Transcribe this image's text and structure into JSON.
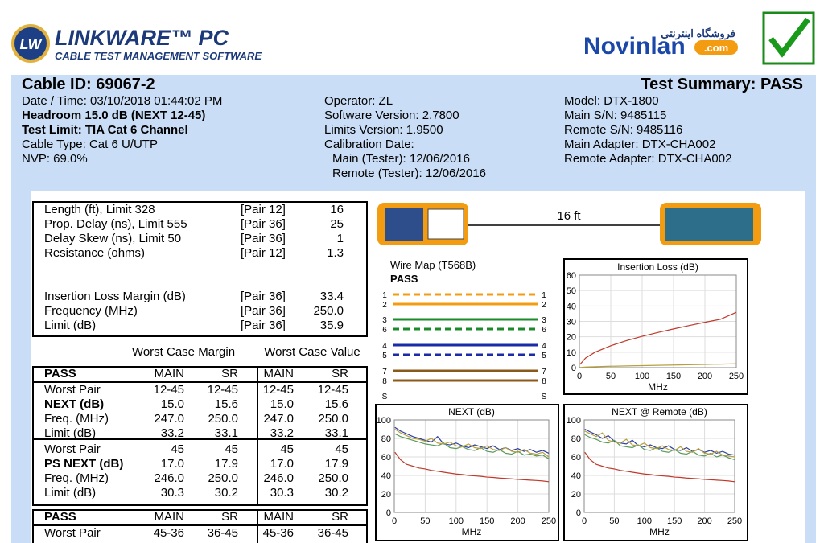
{
  "header": {
    "logo_badge": "LW",
    "product": "LINKWARE™ PC",
    "tagline": "CABLE TEST MANAGEMENT SOFTWARE",
    "brand": "Novinlan",
    "brand_suffix": ".com",
    "brand_persian": "فروشگاه اینترنتی"
  },
  "summary": {
    "cable_id": "Cable ID: 69067-2",
    "result": "Test Summary: PASS",
    "col1": [
      "Date / Time: 03/10/2018  01:44:02 PM",
      "Headroom 15.0 dB (NEXT 12-45)",
      "Test Limit: TIA Cat 6 Channel",
      "Cable Type: Cat 6 U/UTP",
      "NVP: 69.0%"
    ],
    "col2": [
      "Operator: ZL",
      "Software Version: 2.7800",
      "Limits Version: 1.9500",
      "Calibration Date:",
      "Main (Tester): 12/06/2016",
      "Remote (Tester): 12/06/2016"
    ],
    "col3": [
      "Model: DTX-1800",
      "Main S/N: 9485115",
      "Remote S/N: 9485116",
      "Main Adapter: DTX-CHA002",
      "Remote Adapter: DTX-CHA002"
    ]
  },
  "results": [
    [
      [
        "Length (ft), Limit 328",
        "[Pair 12]",
        "16"
      ],
      [
        "Prop. Delay (ns), Limit 555",
        "[Pair 36]",
        "25"
      ],
      [
        "Delay Skew (ns), Limit 50",
        "[Pair 36]",
        "1"
      ],
      [
        "Resistance (ohms)",
        "[Pair 12]",
        "1.3"
      ]
    ],
    [
      [
        "Insertion Loss Margin (dB)",
        "[Pair 36]",
        "33.4"
      ],
      [
        "Frequency (MHz)",
        "[Pair 36]",
        "250.0"
      ],
      [
        "Limit (dB)",
        "[Pair 36]",
        "35.9"
      ]
    ]
  ],
  "worst_case": {
    "headings": [
      "Worst Case Margin",
      "Worst Case Value"
    ],
    "tables": [
      {
        "header": [
          "PASS",
          "MAIN",
          "SR",
          "MAIN",
          "SR"
        ],
        "groups": [
          [
            [
              "Worst Pair",
              "12-45",
              "12-45",
              "12-45",
              "12-45"
            ],
            [
              "NEXT (dB)",
              "15.0",
              "15.6",
              "15.0",
              "15.6"
            ],
            [
              "Freq. (MHz)",
              "247.0",
              "250.0",
              "247.0",
              "250.0"
            ],
            [
              "Limit (dB)",
              "33.2",
              "33.1",
              "33.2",
              "33.1"
            ]
          ],
          [
            [
              "Worst Pair",
              "45",
              "45",
              "45",
              "45"
            ],
            [
              "PS NEXT (dB)",
              "17.0",
              "17.9",
              "17.0",
              "17.9"
            ],
            [
              "Freq. (MHz)",
              "246.0",
              "250.0",
              "246.0",
              "250.0"
            ],
            [
              "Limit (dB)",
              "30.3",
              "30.2",
              "30.3",
              "30.2"
            ]
          ]
        ]
      },
      {
        "header": [
          "PASS",
          "MAIN",
          "SR",
          "MAIN",
          "SR"
        ],
        "groups": [
          [
            [
              "Worst Pair",
              "45-36",
              "36-45",
              "45-36",
              "36-45"
            ]
          ]
        ]
      }
    ]
  },
  "link": {
    "length": "16 ft"
  },
  "wire_map": {
    "title": "Wire Map (T568B)",
    "status": "PASS",
    "pins": [
      "1",
      "2",
      "3",
      "6",
      "4",
      "5",
      "7",
      "8",
      "S"
    ]
  },
  "chart_data": [
    {
      "type": "line",
      "title": "Insertion Loss (dB)",
      "x_label": "MHz",
      "xlim": [
        0,
        250
      ],
      "ylim": [
        0,
        60
      ],
      "xticks": [
        0,
        50,
        100,
        150,
        200,
        250
      ],
      "yticks": [
        0,
        10,
        20,
        30,
        40,
        50,
        60
      ],
      "grid": true,
      "x": [
        1,
        10,
        25,
        50,
        75,
        100,
        125,
        150,
        175,
        200,
        225,
        250
      ],
      "series": [
        {
          "color": "#c0392b",
          "values": [
            2.1,
            6.3,
            10,
            14.2,
            17.5,
            20.3,
            22.8,
            25.1,
            27.3,
            29.4,
            31.4,
            35.9
          ]
        },
        {
          "color": "#b8a040",
          "values": [
            0.1,
            0.4,
            0.6,
            0.9,
            1.1,
            1.3,
            1.5,
            1.7,
            1.9,
            2.1,
            2.3,
            2.5
          ]
        }
      ]
    },
    {
      "type": "line",
      "title": "NEXT (dB)",
      "x_label": "MHz",
      "xlim": [
        0,
        250
      ],
      "ylim": [
        0,
        100
      ],
      "xticks": [
        0,
        50,
        100,
        150,
        200,
        250
      ],
      "yticks": [
        0,
        20,
        40,
        60,
        80,
        100
      ],
      "grid": true,
      "x": [
        1,
        10,
        20,
        30,
        40,
        50,
        60,
        70,
        80,
        90,
        100,
        110,
        120,
        130,
        140,
        150,
        160,
        170,
        180,
        190,
        200,
        210,
        220,
        230,
        240,
        250
      ],
      "series": [
        {
          "color": "#c0392b",
          "values": [
            65,
            57,
            52,
            50,
            48,
            47,
            45.5,
            44.5,
            43.5,
            42.5,
            41.5,
            41,
            40,
            39.5,
            39,
            38.2,
            37.8,
            37.2,
            36.8,
            36.3,
            35.7,
            35.3,
            34.9,
            34.5,
            34,
            33.2
          ]
        },
        {
          "color": "#3040a0",
          "values": [
            92,
            88,
            85,
            82,
            80,
            78,
            76,
            82,
            74,
            73,
            75,
            72,
            70,
            73,
            71,
            69,
            72,
            68,
            70,
            67,
            69,
            66,
            68,
            65,
            67,
            64
          ]
        },
        {
          "color": "#5a9a5a",
          "values": [
            85,
            82,
            80,
            78,
            76,
            74,
            73,
            72,
            75,
            70,
            69,
            71,
            68,
            67,
            70,
            66,
            65,
            68,
            64,
            63,
            66,
            62,
            63,
            61,
            62,
            58
          ]
        },
        {
          "color": "#b8a040",
          "values": [
            90,
            86,
            83,
            80,
            79,
            77,
            80,
            75,
            74,
            76,
            72,
            71,
            74,
            70,
            69,
            72,
            68,
            67,
            70,
            66,
            65,
            68,
            64,
            63,
            65,
            60
          ]
        }
      ]
    },
    {
      "type": "line",
      "title": "NEXT @ Remote (dB)",
      "x_label": "MHz",
      "xlim": [
        0,
        250
      ],
      "ylim": [
        0,
        100
      ],
      "xticks": [
        0,
        50,
        100,
        150,
        200,
        250
      ],
      "yticks": [
        0,
        20,
        40,
        60,
        80,
        100
      ],
      "grid": true,
      "x": [
        1,
        10,
        20,
        30,
        40,
        50,
        60,
        70,
        80,
        90,
        100,
        110,
        120,
        130,
        140,
        150,
        160,
        170,
        180,
        190,
        200,
        210,
        220,
        230,
        240,
        250
      ],
      "series": [
        {
          "color": "#c0392b",
          "values": [
            65,
            57,
            52,
            50,
            48,
            47,
            45.5,
            44.5,
            43.5,
            42.5,
            41.5,
            41,
            40,
            39.5,
            39,
            38.2,
            37.8,
            37.2,
            36.8,
            36.3,
            35.7,
            35.3,
            34.9,
            34.5,
            34,
            33.2
          ]
        },
        {
          "color": "#3040a0",
          "values": [
            90,
            87,
            84,
            80,
            83,
            77,
            75,
            74,
            78,
            72,
            71,
            73,
            70,
            69,
            72,
            68,
            67,
            70,
            66,
            68,
            65,
            67,
            64,
            66,
            63,
            62
          ]
        },
        {
          "color": "#5a9a5a",
          "values": [
            84,
            81,
            79,
            76,
            75,
            78,
            72,
            71,
            70,
            73,
            68,
            67,
            70,
            66,
            65,
            68,
            64,
            63,
            66,
            62,
            61,
            64,
            60,
            62,
            59,
            57
          ]
        },
        {
          "color": "#b8a040",
          "values": [
            88,
            85,
            82,
            86,
            78,
            76,
            75,
            79,
            73,
            72,
            75,
            70,
            69,
            72,
            68,
            67,
            71,
            66,
            65,
            69,
            64,
            63,
            66,
            62,
            61,
            60
          ]
        }
      ]
    }
  ]
}
